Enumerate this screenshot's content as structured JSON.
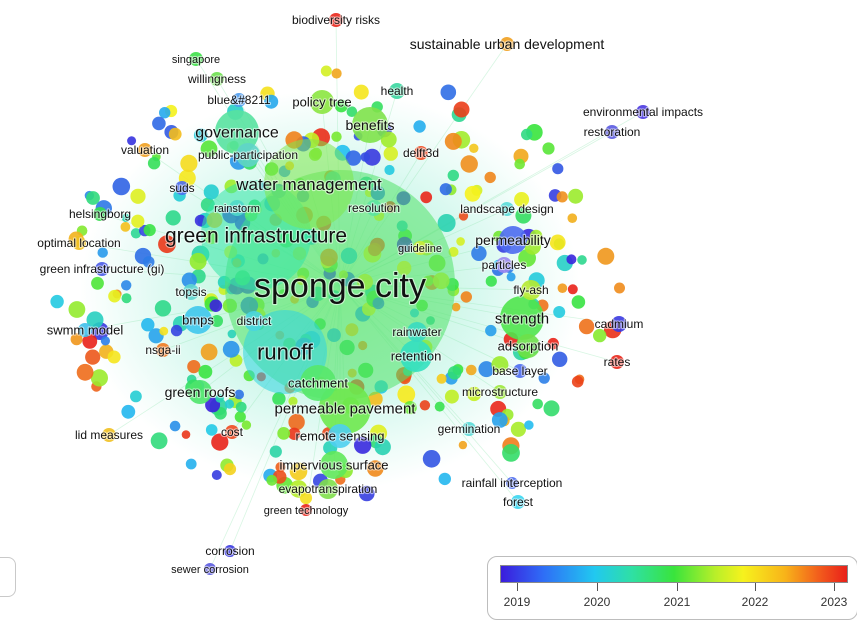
{
  "network": {
    "nodes": [
      {
        "label": "sponge city",
        "color": "#52e26a"
      },
      {
        "label": "green infrastructure",
        "color": "#33e6a6"
      },
      {
        "label": "water management",
        "color": "#7fe84a"
      },
      {
        "label": "runoff",
        "color": "#2fd3e0"
      },
      {
        "label": "permeable pavement",
        "color": "#6ee84e"
      },
      {
        "label": "governance",
        "color": "#58e2a0"
      },
      {
        "label": "benefits",
        "color": "#7ee24a"
      },
      {
        "label": "strength",
        "color": "#4fe44c"
      },
      {
        "label": "permeability",
        "color": "#4d6cf0"
      },
      {
        "label": "retention",
        "color": "#33e0c0"
      },
      {
        "label": "catchment",
        "color": "#56e86a"
      },
      {
        "label": "green roofs",
        "color": "#4ee46a"
      },
      {
        "label": "bmps",
        "color": "#3fc6ec"
      },
      {
        "label": "policy tree",
        "color": "#8be640"
      },
      {
        "label": "public-participation",
        "color": "#5fd4c8"
      },
      {
        "label": "remote sensing",
        "color": "#4ecff0"
      },
      {
        "label": "impervious surface",
        "color": "#5fe85a"
      },
      {
        "label": "evapotranspiration",
        "color": "#7fe04a"
      },
      {
        "label": "rainwater",
        "color": "#39dcc0"
      },
      {
        "label": "adsorption",
        "color": "#6ee04a"
      },
      {
        "label": "fly-ash",
        "color": "#b6ea30"
      },
      {
        "label": "cadmium",
        "color": "#3a3ae0"
      },
      {
        "label": "topsis",
        "color": "#5fd6d0"
      },
      {
        "label": "district",
        "color": "#4ad5e0"
      },
      {
        "label": "rainstorm",
        "color": "#4fd8c8"
      },
      {
        "label": "resolution",
        "color": "#5be4a0"
      },
      {
        "label": "guideline",
        "color": "#c9ea3a"
      },
      {
        "label": "particles",
        "color": "#9a86f0"
      },
      {
        "label": "landscape design",
        "color": "#5adbd8"
      },
      {
        "label": "health",
        "color": "#3ad6a0"
      },
      {
        "label": "delft3d",
        "color": "#f04a20"
      },
      {
        "label": "blue&#8211",
        "color": "#4e9cf0"
      },
      {
        "label": "willingness",
        "color": "#6ee050"
      },
      {
        "label": "singapore",
        "color": "#3fe04a"
      },
      {
        "label": "valuation",
        "color": "#f0a020"
      },
      {
        "label": "suds",
        "color": "#4d6cf0"
      },
      {
        "label": "helsingborg",
        "color": "#39dc50"
      },
      {
        "label": "optimal location",
        "color": "#f0c020"
      },
      {
        "label": "green infrastructure (gi)",
        "color": "#4a5ce8"
      },
      {
        "label": "swmm model",
        "color": "#3fbfea"
      },
      {
        "label": "nsga-ii",
        "color": "#f07a20"
      },
      {
        "label": "lid measures",
        "color": "#f0c020"
      },
      {
        "label": "cost",
        "color": "#f04a20"
      },
      {
        "label": "green technology",
        "color": "#e9261a"
      },
      {
        "label": "base layer",
        "color": "#4d6cf0"
      },
      {
        "label": "microstructure",
        "color": "#9ce83a"
      },
      {
        "label": "germination",
        "color": "#5adbd8"
      },
      {
        "label": "rates",
        "color": "#e9261a"
      },
      {
        "label": "rainfall interception",
        "color": "#4d6cf0"
      },
      {
        "label": "forest",
        "color": "#3ad6f0"
      },
      {
        "label": "corrosion",
        "color": "#3a3ae0"
      },
      {
        "label": "sewer corrosion",
        "color": "#5a5ae0"
      },
      {
        "label": "biodiversity risks",
        "color": "#e9261a"
      },
      {
        "label": "sustainable urban development",
        "color": "#f0a020"
      },
      {
        "label": "environmental impacts",
        "color": "#4a38e0"
      },
      {
        "label": "restoration",
        "color": "#5a5ae0"
      }
    ]
  },
  "legend": {
    "years": [
      "2019",
      "2020",
      "2021",
      "2022",
      "2023"
    ],
    "colors": [
      "#3b1cdc",
      "#21c8f0",
      "#39e43c",
      "#f6f21d",
      "#e9201a"
    ]
  }
}
